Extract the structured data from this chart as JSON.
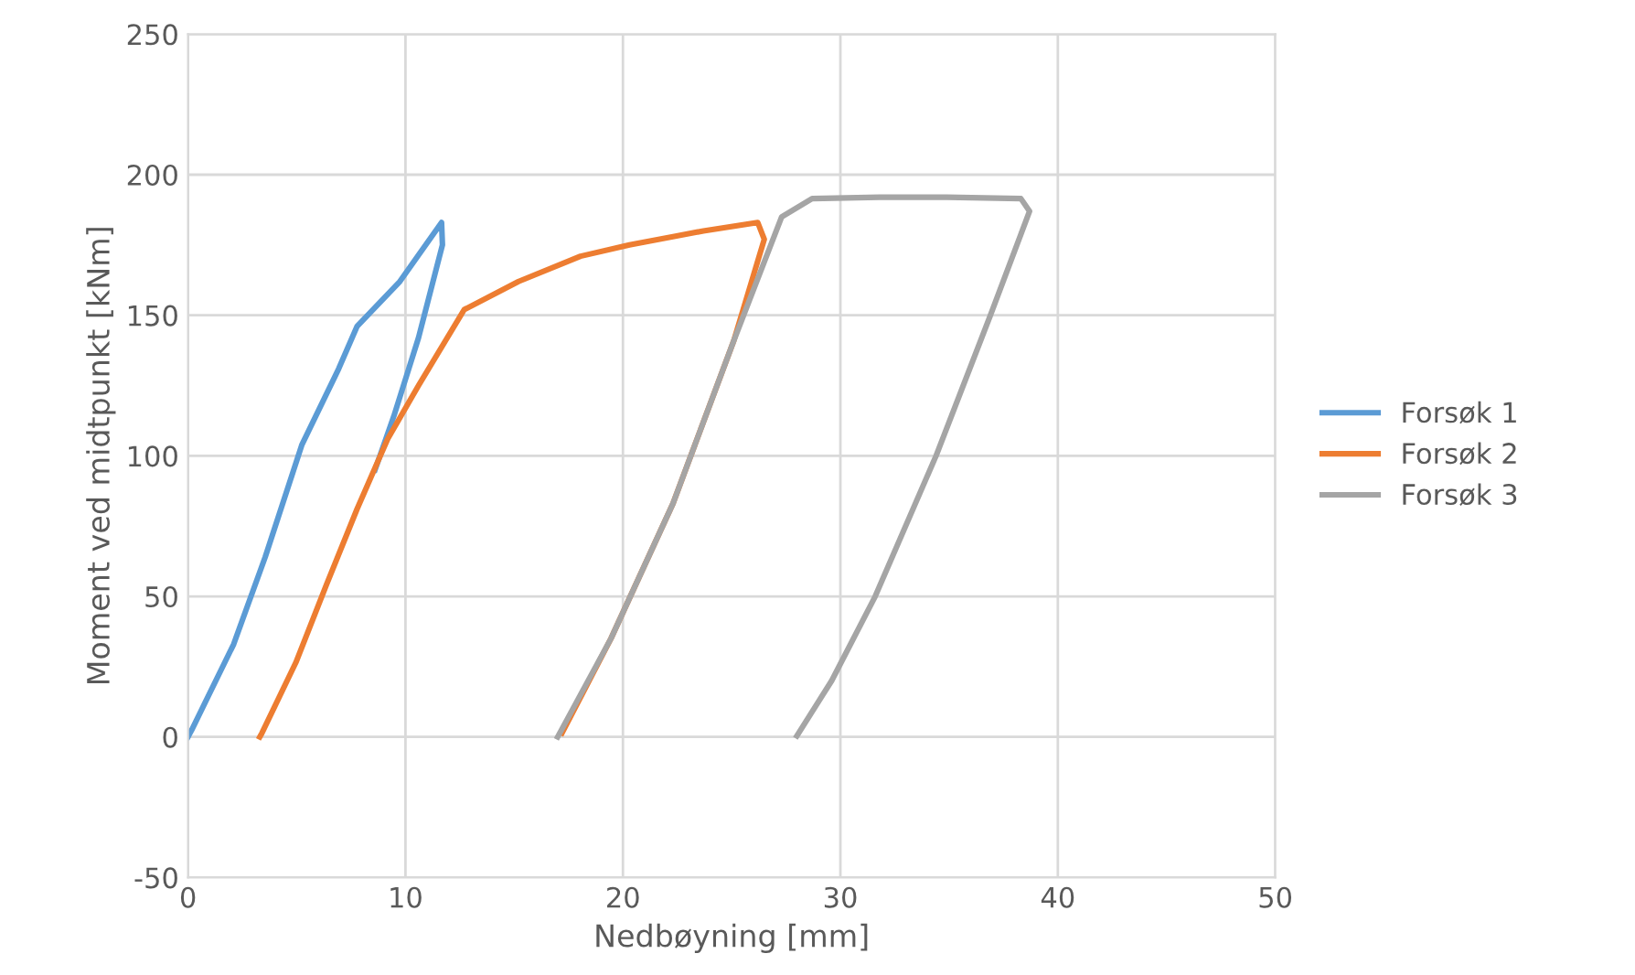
{
  "chart_data": {
    "type": "line",
    "xlabel": "Nedbøyning [mm]",
    "ylabel": "Moment ved midtpunkt [kNm]",
    "xlim": [
      0,
      50
    ],
    "xticks": [
      0,
      10,
      20,
      30,
      40,
      50
    ],
    "ylim": [
      -50,
      250
    ],
    "yticks": [
      -50,
      0,
      50,
      100,
      150,
      200,
      250
    ],
    "grid": true,
    "legend": "right",
    "marker": "none",
    "line_style": "solid",
    "series": [
      {
        "name": "Forsøk 1",
        "color": "#5b9bd5",
        "x": [
          0,
          0.17,
          2.1,
          3.55,
          5.24,
          6.93,
          7.77,
          9.74,
          11.66,
          11.7,
          10.6,
          9.46,
          8.6
        ],
        "values": [
          0,
          2.5,
          33,
          64,
          104,
          131,
          146,
          162,
          183,
          175,
          142,
          114,
          95
        ]
      },
      {
        "name": "Forsøk 2",
        "color": "#ed7d31",
        "x": [
          3.3,
          3.4,
          4.96,
          6.36,
          7.77,
          9.18,
          10.6,
          12.7,
          15.2,
          18.05,
          20.3,
          23.7,
          26.2,
          26.5,
          25.1,
          22.3,
          19.45,
          17.2
        ],
        "values": [
          0,
          1.4,
          26.5,
          54,
          81,
          106,
          125,
          152,
          162,
          171,
          175,
          180,
          183,
          177,
          141,
          83,
          35,
          1.4
        ]
      },
      {
        "name": "Forsøk 3",
        "color": "#a5a5a5",
        "x": [
          17.0,
          19.45,
          22.3,
          25.1,
          27.3,
          28.7,
          31.8,
          34.9,
          38.3,
          38.7,
          36.9,
          34.4,
          31.6,
          29.6,
          28.0
        ],
        "values": [
          0,
          35,
          83,
          141,
          185,
          191.5,
          192,
          192,
          191.5,
          187,
          150,
          100,
          50,
          20,
          0.4
        ]
      }
    ]
  }
}
